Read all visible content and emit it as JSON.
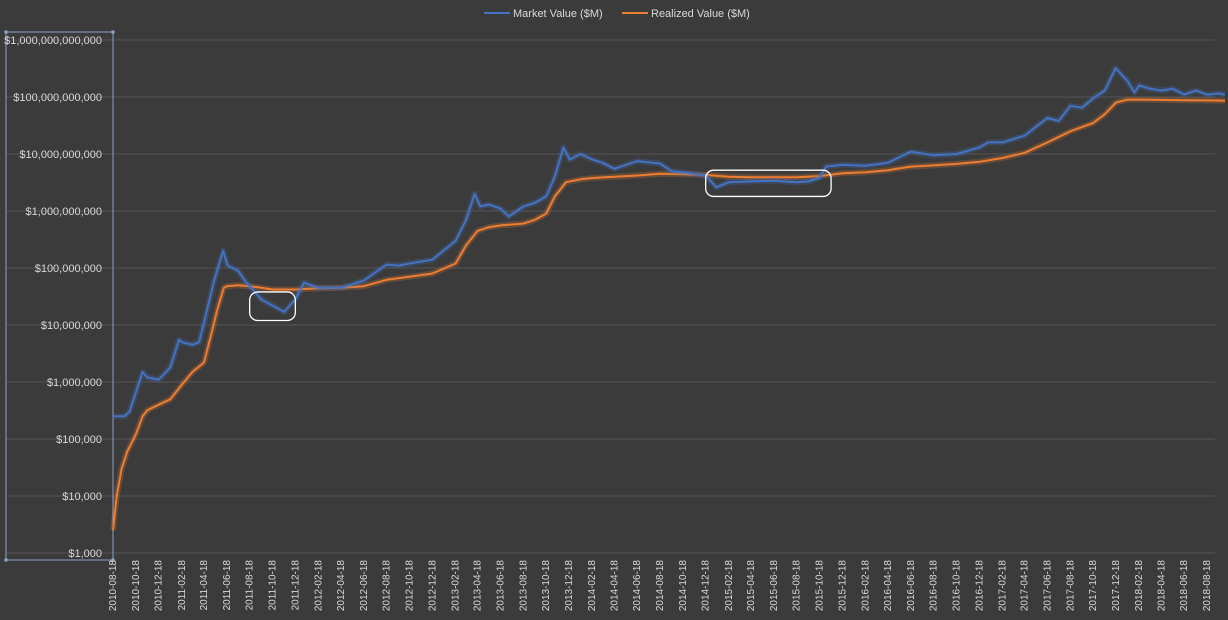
{
  "chart_data": {
    "type": "line",
    "title": "",
    "xlabel": "",
    "ylabel": "",
    "y_scale": "log",
    "ylim": [
      1000,
      1000000000000
    ],
    "y_ticks": [
      {
        "value": 1000000000000,
        "label": "$1,000,000,000,000"
      },
      {
        "value": 100000000000,
        "label": "$100,000,000,000"
      },
      {
        "value": 10000000000,
        "label": "$10,000,000,000"
      },
      {
        "value": 1000000000,
        "label": "$1,000,000,000"
      },
      {
        "value": 100000000,
        "label": "$100,000,000"
      },
      {
        "value": 10000000,
        "label": "$10,000,000"
      },
      {
        "value": 1000000,
        "label": "$1,000,000"
      },
      {
        "value": 100000,
        "label": "$100,000"
      },
      {
        "value": 10000,
        "label": "$10,000"
      },
      {
        "value": 1000,
        "label": "$1,000"
      }
    ],
    "x_ticks": [
      "2010-08-18",
      "2010-10-18",
      "2010-12-18",
      "2011-02-18",
      "2011-04-18",
      "2011-06-18",
      "2011-08-18",
      "2011-10-18",
      "2011-12-18",
      "2012-02-18",
      "2012-04-18",
      "2012-06-18",
      "2012-08-18",
      "2012-10-18",
      "2012-12-18",
      "2013-02-18",
      "2013-04-18",
      "2013-06-18",
      "2013-08-18",
      "2013-10-18",
      "2013-12-18",
      "2014-02-18",
      "2014-04-18",
      "2014-06-18",
      "2014-08-18",
      "2014-10-18",
      "2014-12-18",
      "2015-02-18",
      "2015-04-18",
      "2015-06-18",
      "2015-08-18",
      "2015-10-18",
      "2015-12-18",
      "2016-02-18",
      "2016-04-18",
      "2016-06-18",
      "2016-08-18",
      "2016-10-18",
      "2016-12-18",
      "2017-02-18",
      "2017-04-18",
      "2017-06-18",
      "2017-08-18",
      "2017-10-18",
      "2017-12-18",
      "2018-02-18",
      "2018-04-18",
      "2018-06-18",
      "2018-08-18"
    ],
    "grid": true,
    "legend_position": "top-center",
    "series": [
      {
        "name": "Market Value ($M)",
        "color": "#4472c4",
        "points": [
          [
            "2010-08-18",
            250000
          ],
          [
            "2010-09-18",
            250000
          ],
          [
            "2010-10-01",
            300000
          ],
          [
            "2010-10-18",
            650000
          ],
          [
            "2010-11-05",
            1500000
          ],
          [
            "2010-11-18",
            1200000
          ],
          [
            "2010-12-18",
            1100000
          ],
          [
            "2011-01-18",
            1800000
          ],
          [
            "2011-02-10",
            5500000
          ],
          [
            "2011-02-18",
            5000000
          ],
          [
            "2011-03-18",
            4500000
          ],
          [
            "2011-04-05",
            5000000
          ],
          [
            "2011-04-18",
            11000000
          ],
          [
            "2011-05-15",
            60000000
          ],
          [
            "2011-06-08",
            200000000
          ],
          [
            "2011-06-20",
            110000000
          ],
          [
            "2011-07-18",
            90000000
          ],
          [
            "2011-08-05",
            60000000
          ],
          [
            "2011-08-18",
            48000000
          ],
          [
            "2011-09-18",
            28000000
          ],
          [
            "2011-10-18",
            22000000
          ],
          [
            "2011-11-18",
            17000000
          ],
          [
            "2011-12-18",
            28000000
          ],
          [
            "2012-01-10",
            55000000
          ],
          [
            "2012-02-18",
            45000000
          ],
          [
            "2012-04-18",
            45000000
          ],
          [
            "2012-06-18",
            60000000
          ],
          [
            "2012-08-18",
            115000000
          ],
          [
            "2012-09-18",
            110000000
          ],
          [
            "2012-10-18",
            120000000
          ],
          [
            "2012-12-18",
            140000000
          ],
          [
            "2013-02-18",
            300000000
          ],
          [
            "2013-03-18",
            700000000
          ],
          [
            "2013-04-10",
            2000000000
          ],
          [
            "2013-04-25",
            1200000000
          ],
          [
            "2013-05-18",
            1300000000
          ],
          [
            "2013-06-18",
            1100000000
          ],
          [
            "2013-07-10",
            800000000
          ],
          [
            "2013-08-18",
            1200000000
          ],
          [
            "2013-09-18",
            1400000000
          ],
          [
            "2013-10-18",
            1800000000
          ],
          [
            "2013-11-10",
            4000000000
          ],
          [
            "2013-12-03",
            13000000000
          ],
          [
            "2013-12-20",
            8000000000
          ],
          [
            "2014-01-18",
            10000000000
          ],
          [
            "2014-02-18",
            8000000000
          ],
          [
            "2014-03-18",
            7000000000
          ],
          [
            "2014-04-18",
            5500000000
          ],
          [
            "2014-06-18",
            7500000000
          ],
          [
            "2014-08-18",
            6800000000
          ],
          [
            "2014-09-18",
            5000000000
          ],
          [
            "2014-10-18",
            4800000000
          ],
          [
            "2014-12-18",
            4200000000
          ],
          [
            "2015-01-15",
            2600000000
          ],
          [
            "2015-02-18",
            3200000000
          ],
          [
            "2015-04-18",
            3300000000
          ],
          [
            "2015-06-18",
            3400000000
          ],
          [
            "2015-08-18",
            3200000000
          ],
          [
            "2015-09-18",
            3300000000
          ],
          [
            "2015-10-18",
            3800000000
          ],
          [
            "2015-11-05",
            6000000000
          ],
          [
            "2015-12-18",
            6500000000
          ],
          [
            "2016-02-18",
            6200000000
          ],
          [
            "2016-04-18",
            7000000000
          ],
          [
            "2016-06-18",
            11000000000
          ],
          [
            "2016-08-18",
            9500000000
          ],
          [
            "2016-10-18",
            10000000000
          ],
          [
            "2016-12-18",
            13000000000
          ],
          [
            "2017-01-10",
            16000000000
          ],
          [
            "2017-02-18",
            16000000000
          ],
          [
            "2017-04-18",
            21000000000
          ],
          [
            "2017-06-18",
            43000000000
          ],
          [
            "2017-07-18",
            38000000000
          ],
          [
            "2017-08-18",
            70000000000
          ],
          [
            "2017-09-18",
            65000000000
          ],
          [
            "2017-10-18",
            95000000000
          ],
          [
            "2017-11-18",
            130000000000
          ],
          [
            "2017-12-17",
            320000000000
          ],
          [
            "2018-01-18",
            190000000000
          ],
          [
            "2018-02-05",
            120000000000
          ],
          [
            "2018-02-18",
            160000000000
          ],
          [
            "2018-03-18",
            140000000000
          ],
          [
            "2018-04-18",
            130000000000
          ],
          [
            "2018-05-18",
            140000000000
          ],
          [
            "2018-06-18",
            110000000000
          ],
          [
            "2018-07-20",
            130000000000
          ],
          [
            "2018-08-18",
            110000000000
          ],
          [
            "2018-09-18",
            115000000000
          ],
          [
            "2018-10-05",
            110000000000
          ]
        ]
      },
      {
        "name": "Realized Value ($M)",
        "color": "#ed7d31",
        "points": [
          [
            "2010-08-18",
            2500
          ],
          [
            "2010-08-28",
            10000
          ],
          [
            "2010-09-10",
            30000
          ],
          [
            "2010-09-25",
            60000
          ],
          [
            "2010-10-18",
            120000
          ],
          [
            "2010-11-05",
            250000
          ],
          [
            "2010-11-18",
            320000
          ],
          [
            "2010-12-18",
            400000
          ],
          [
            "2011-01-18",
            500000
          ],
          [
            "2011-02-18",
            900000
          ],
          [
            "2011-03-18",
            1500000
          ],
          [
            "2011-04-18",
            2200000
          ],
          [
            "2011-05-10",
            8000000
          ],
          [
            "2011-05-25",
            20000000
          ],
          [
            "2011-06-10",
            45000000
          ],
          [
            "2011-06-18",
            48000000
          ],
          [
            "2011-07-18",
            50000000
          ],
          [
            "2011-08-18",
            48000000
          ],
          [
            "2011-09-18",
            45000000
          ],
          [
            "2011-10-18",
            42000000
          ],
          [
            "2011-12-18",
            42000000
          ],
          [
            "2012-02-18",
            44000000
          ],
          [
            "2012-04-18",
            45000000
          ],
          [
            "2012-06-18",
            48000000
          ],
          [
            "2012-08-18",
            62000000
          ],
          [
            "2012-10-18",
            70000000
          ],
          [
            "2012-12-18",
            80000000
          ],
          [
            "2013-02-18",
            120000000
          ],
          [
            "2013-03-18",
            250000000
          ],
          [
            "2013-04-18",
            450000000
          ],
          [
            "2013-05-18",
            520000000
          ],
          [
            "2013-06-18",
            560000000
          ],
          [
            "2013-08-18",
            600000000
          ],
          [
            "2013-09-18",
            700000000
          ],
          [
            "2013-10-18",
            900000000
          ],
          [
            "2013-11-10",
            1800000000
          ],
          [
            "2013-12-10",
            3200000000
          ],
          [
            "2014-01-18",
            3600000000
          ],
          [
            "2014-02-18",
            3800000000
          ],
          [
            "2014-04-18",
            4000000000
          ],
          [
            "2014-06-18",
            4200000000
          ],
          [
            "2014-08-18",
            4500000000
          ],
          [
            "2014-10-18",
            4400000000
          ],
          [
            "2014-12-18",
            4300000000
          ],
          [
            "2015-02-18",
            4000000000
          ],
          [
            "2015-04-18",
            3900000000
          ],
          [
            "2015-06-18",
            3900000000
          ],
          [
            "2015-08-18",
            3900000000
          ],
          [
            "2015-10-18",
            4100000000
          ],
          [
            "2015-12-18",
            4600000000
          ],
          [
            "2016-02-18",
            4800000000
          ],
          [
            "2016-04-18",
            5200000000
          ],
          [
            "2016-06-18",
            6000000000
          ],
          [
            "2016-08-18",
            6300000000
          ],
          [
            "2016-10-18",
            6700000000
          ],
          [
            "2016-12-18",
            7300000000
          ],
          [
            "2017-02-18",
            8500000000
          ],
          [
            "2017-04-18",
            10500000000
          ],
          [
            "2017-06-18",
            16000000000
          ],
          [
            "2017-08-18",
            25000000000
          ],
          [
            "2017-10-18",
            35000000000
          ],
          [
            "2017-11-18",
            50000000000
          ],
          [
            "2017-12-18",
            80000000000
          ],
          [
            "2018-01-18",
            90000000000
          ],
          [
            "2018-02-18",
            90000000000
          ],
          [
            "2018-04-18",
            89000000000
          ],
          [
            "2018-06-18",
            88000000000
          ],
          [
            "2018-08-18",
            87000000000
          ],
          [
            "2018-10-05",
            86000000000
          ]
        ]
      }
    ],
    "annotations": [
      {
        "type": "ellipse",
        "x_start": "2011-08-18",
        "x_end": "2011-12-18",
        "y_low": 12000000,
        "y_high": 38000000
      },
      {
        "type": "ellipse",
        "x_start": "2014-12-18",
        "x_end": "2015-11-18",
        "y_low": 1800000000,
        "y_high": 5200000000
      }
    ]
  }
}
